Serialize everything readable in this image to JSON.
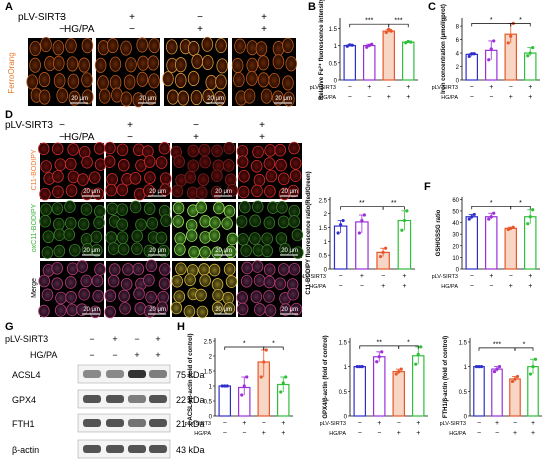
{
  "panel_letters": [
    "A",
    "B",
    "C",
    "D",
    "E",
    "F",
    "G",
    "H"
  ],
  "conditions": {
    "sirt3_label": "pLV-SIRT3",
    "hgpa_label": "HG/PA",
    "sirt3": [
      "−",
      "+",
      "−",
      "+"
    ],
    "hgpa": [
      "−",
      "−",
      "+",
      "+"
    ]
  },
  "panel_a": {
    "row_label": "FerroOrang",
    "scale_bar": "20 μm"
  },
  "panel_d": {
    "row_labels": [
      "C11-BODIPY",
      "oxC11-BODIPY",
      "Merge"
    ],
    "scale_bar": "20 μm"
  },
  "panel_g": {
    "bands": [
      {
        "protein": "ACSL4",
        "kda": "75 kDa",
        "intensity": [
          0.55,
          0.55,
          0.95,
          0.6
        ]
      },
      {
        "protein": "GPX4",
        "kda": "22 kDa",
        "intensity": [
          0.8,
          0.8,
          0.6,
          0.8
        ]
      },
      {
        "protein": "FTH1",
        "kda": "21 kDa",
        "intensity": [
          0.8,
          0.8,
          0.65,
          0.8
        ]
      },
      {
        "protein": "β-actin",
        "kda": "43 kDa",
        "intensity": [
          0.8,
          0.8,
          0.8,
          0.8
        ]
      }
    ]
  },
  "colors": {
    "group1": "#2e2ecc",
    "group2": "#9b30d8",
    "group3": "#e8572a",
    "group4": "#2fbf3a",
    "sig": "#000000"
  },
  "chart_data": [
    {
      "id": "B",
      "type": "bar",
      "ylabel": "Relative Fe²⁺ fluorescence intensity",
      "yticks": [
        0.0,
        0.5,
        1.0,
        1.5
      ],
      "ylim": [
        0,
        1.8
      ],
      "values": [
        1.0,
        1.0,
        1.42,
        1.1
      ],
      "points": [
        [
          0.98,
          1.02,
          1.01
        ],
        [
          0.95,
          1.0,
          1.04
        ],
        [
          1.38,
          1.47,
          1.42
        ],
        [
          1.08,
          1.12,
          1.1
        ]
      ],
      "sig": [
        {
          "from": 0,
          "to": 2,
          "label": "***",
          "level": 1.62
        },
        {
          "from": 2,
          "to": 3,
          "label": "***",
          "level": 1.62
        }
      ]
    },
    {
      "id": "C",
      "type": "bar",
      "ylabel": "Iron concentration (μmol/gprot)",
      "yticks": [
        0,
        2,
        4,
        6,
        8
      ],
      "ylim": [
        0,
        9.2
      ],
      "values": [
        3.8,
        4.4,
        6.8,
        4.0
      ],
      "points": [
        [
          3.5,
          3.9,
          3.9
        ],
        [
          3.0,
          4.6,
          5.8
        ],
        [
          5.5,
          6.5,
          8.4
        ],
        [
          3.6,
          4.0,
          4.8
        ]
      ],
      "sig": [
        {
          "from": 0,
          "to": 2,
          "label": "*",
          "level": 8.4
        },
        {
          "from": 2,
          "to": 3,
          "label": "*",
          "level": 8.4
        }
      ]
    },
    {
      "id": "E",
      "type": "bar",
      "ylabel": "C11-BODIPY fluorescence ratio(Red/Green)",
      "yticks": [
        0.0,
        0.5,
        1.0,
        1.5,
        2.0,
        2.5
      ],
      "ylim": [
        0,
        2.6
      ],
      "values": [
        1.55,
        1.7,
        0.6,
        1.75
      ],
      "points": [
        [
          1.3,
          1.6,
          1.75
        ],
        [
          1.3,
          1.75,
          1.95
        ],
        [
          0.45,
          0.6,
          0.75
        ],
        [
          1.4,
          1.75,
          2.1
        ]
      ],
      "sig": [
        {
          "from": 0,
          "to": 2,
          "label": "**",
          "level": 2.25
        },
        {
          "from": 2,
          "to": 3,
          "label": "**",
          "level": 2.25
        }
      ]
    },
    {
      "id": "F",
      "type": "bar",
      "ylabel": "GSH/GSSG ratio",
      "yticks": [
        0,
        10,
        20,
        30,
        40,
        50,
        60
      ],
      "ylim": [
        0,
        62
      ],
      "values": [
        45,
        45,
        35,
        45
      ],
      "points": [
        [
          43,
          45,
          47
        ],
        [
          43,
          45,
          48
        ],
        [
          34,
          35,
          36
        ],
        [
          39,
          45,
          51
        ]
      ],
      "sig": [
        {
          "from": 0,
          "to": 2,
          "label": "*",
          "level": 54
        },
        {
          "from": 2,
          "to": 3,
          "label": "*",
          "level": 54
        }
      ]
    },
    {
      "id": "H1",
      "type": "bar",
      "ylabel": "ACSL4/β-actin (fold of control)",
      "yticks": [
        0.0,
        0.5,
        1.0,
        1.5,
        2.0,
        2.5
      ],
      "ylim": [
        0,
        2.6
      ],
      "values": [
        1.0,
        0.95,
        1.8,
        1.05
      ],
      "points": [
        [
          1.0,
          1.0,
          1.0
        ],
        [
          0.7,
          1.0,
          1.3
        ],
        [
          1.3,
          1.8,
          2.2
        ],
        [
          0.8,
          1.1,
          1.3
        ]
      ],
      "sig": [
        {
          "from": 0,
          "to": 2,
          "label": "*",
          "level": 2.3
        },
        {
          "from": 2,
          "to": 3,
          "label": "*",
          "level": 2.3
        }
      ]
    },
    {
      "id": "H2",
      "type": "bar",
      "ylabel": "GPX4/β-actin (fold of control)",
      "yticks": [
        0.0,
        0.5,
        1.0,
        1.5
      ],
      "ylim": [
        0,
        1.58
      ],
      "values": [
        1.0,
        1.2,
        0.9,
        1.22
      ],
      "points": [
        [
          1.0,
          1.0,
          1.0
        ],
        [
          1.1,
          1.2,
          1.3
        ],
        [
          0.85,
          0.9,
          0.95
        ],
        [
          1.05,
          1.25,
          1.4
        ]
      ],
      "sig": [
        {
          "from": 0,
          "to": 2,
          "label": "**",
          "level": 1.42
        },
        {
          "from": 2,
          "to": 3,
          "label": "*",
          "level": 1.42
        }
      ]
    },
    {
      "id": "H3",
      "type": "bar",
      "ylabel": "FTH1/β-actin (fold of control)",
      "yticks": [
        0.0,
        0.5,
        1.0,
        1.5
      ],
      "ylim": [
        0,
        1.58
      ],
      "values": [
        1.0,
        0.95,
        0.75,
        1.0
      ],
      "points": [
        [
          1.0,
          1.0,
          1.0
        ],
        [
          0.9,
          0.95,
          1.0
        ],
        [
          0.7,
          0.75,
          0.8
        ],
        [
          0.85,
          1.0,
          1.15
        ]
      ],
      "sig": [
        {
          "from": 0,
          "to": 2,
          "label": "***",
          "level": 1.38
        },
        {
          "from": 2,
          "to": 3,
          "label": "*",
          "level": 1.38
        }
      ]
    }
  ]
}
